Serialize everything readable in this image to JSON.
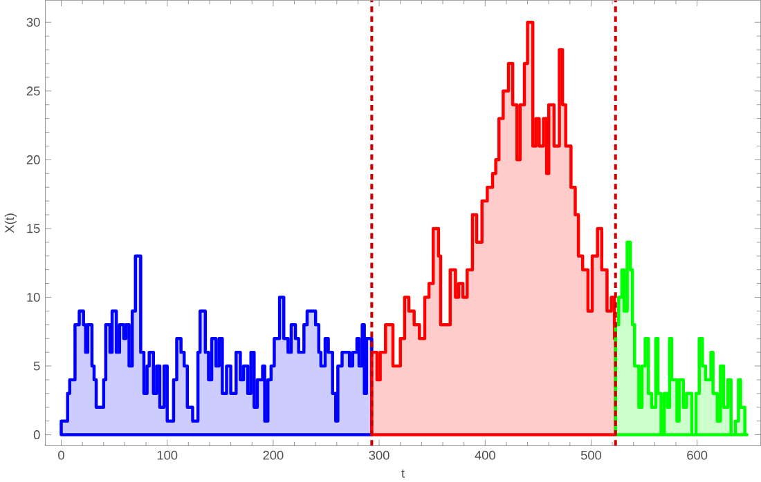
{
  "chart_data": {
    "type": "area",
    "xlabel": "t",
    "ylabel": "X(t)",
    "xlim": [
      -15,
      660
    ],
    "ylim": [
      -0.8,
      31.6
    ],
    "xticks": [
      0,
      100,
      200,
      300,
      400,
      500,
      600
    ],
    "yticks": [
      0,
      5,
      10,
      15,
      20,
      25,
      30
    ],
    "grid": false,
    "series": [
      {
        "color": "#0000ff",
        "x": [
          0,
          6,
          8,
          13,
          17,
          21,
          23,
          25,
          29,
          31,
          33,
          40,
          42,
          46,
          48,
          52,
          55,
          59,
          61,
          64,
          67,
          70,
          75,
          78,
          81,
          83,
          87,
          90,
          93,
          97,
          100,
          106,
          109,
          113,
          116,
          119,
          124,
          129,
          131,
          136,
          139,
          142,
          146,
          149,
          152,
          156,
          160,
          165,
          169,
          172,
          176,
          179,
          182,
          185,
          190,
          192,
          195,
          198,
          201,
          206,
          210,
          214,
          217,
          221,
          224,
          229,
          232,
          240,
          243,
          245,
          249,
          252,
          256,
          259,
          261,
          265,
          272,
          275,
          279,
          281,
          284,
          286,
          288,
          293
        ],
        "values": [
          1,
          3,
          4,
          8,
          9,
          8,
          6,
          8,
          5,
          4,
          2,
          4,
          8,
          6,
          9,
          6,
          8,
          7,
          8,
          5,
          9,
          13,
          6,
          3,
          5,
          6,
          3,
          5,
          2,
          5,
          1,
          4,
          7,
          6,
          5,
          2,
          1,
          6,
          9,
          6,
          4,
          7,
          5,
          7,
          3,
          5,
          3,
          6,
          4,
          5,
          3,
          6,
          2,
          4,
          5,
          1,
          4,
          5,
          7,
          10,
          7,
          6,
          8,
          7,
          6,
          8,
          9,
          8,
          6,
          5,
          7,
          6,
          3,
          1,
          5,
          6,
          5,
          6,
          7,
          5,
          8,
          3,
          7,
          7
        ]
      },
      {
        "color": "#ff0000",
        "x": [
          293,
          298,
          301,
          306,
          313,
          320,
          324,
          328,
          333,
          338,
          343,
          347,
          351,
          356,
          358,
          363,
          367,
          372,
          375,
          379,
          383,
          388,
          392,
          397,
          402,
          407,
          410,
          413,
          417,
          422,
          426,
          430,
          433,
          437,
          440,
          445,
          448,
          451,
          455,
          458,
          460,
          465,
          470,
          473,
          476,
          481,
          485,
          488,
          492,
          497,
          501,
          506,
          510,
          515,
          519,
          522,
          523
        ],
        "values": [
          6,
          4,
          6,
          8,
          5,
          7,
          10,
          9,
          8,
          7,
          10,
          11,
          15,
          13,
          8,
          8,
          12,
          10,
          11,
          10,
          12,
          16,
          14,
          17,
          18,
          19,
          20,
          23,
          25,
          27,
          24,
          20,
          24,
          27,
          30,
          21,
          23,
          21,
          23,
          19,
          24,
          21,
          28,
          24,
          21,
          18,
          16,
          13,
          12,
          9,
          13,
          15,
          12,
          9,
          10,
          7,
          7
        ]
      },
      {
        "color": "#00ff00",
        "x": [
          523,
          526,
          529,
          531,
          534,
          537,
          539,
          541,
          545,
          548,
          551,
          554,
          557,
          561,
          563,
          566,
          569,
          572,
          574,
          576,
          581,
          583,
          587,
          590,
          595,
          599,
          602,
          605,
          608,
          613,
          615,
          619,
          622,
          625,
          629,
          632,
          636,
          639,
          641,
          645,
          647
        ],
        "values": [
          8,
          10,
          12,
          9,
          14,
          12,
          8,
          5,
          2,
          5,
          7,
          3,
          2,
          7,
          3,
          0,
          3,
          2,
          7,
          4,
          1,
          4,
          2,
          3,
          0,
          3,
          7,
          5,
          4,
          6,
          3,
          1,
          5,
          2,
          4,
          0,
          1,
          4,
          2,
          0,
          0
        ]
      }
    ],
    "ref_lines": [
      {
        "axis": "x",
        "value": 293,
        "color": "#cc0000",
        "line_style": "dashed"
      },
      {
        "axis": "x",
        "value": 523,
        "color": "#cc0000",
        "line_style": "dashed"
      }
    ]
  }
}
